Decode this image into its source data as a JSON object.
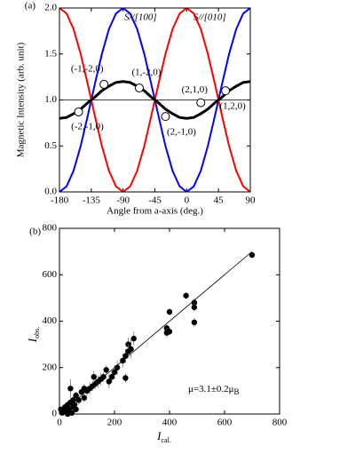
{
  "chart_data": [
    {
      "type": "line",
      "panel_label": "(a)",
      "xlabel": "Angle from a-axis (deg.)",
      "ylabel": "Magnetic Intensity (arb. unit)",
      "xlim": [
        -180,
        90
      ],
      "ylim": [
        0,
        2
      ],
      "xticks": [
        -180,
        -135,
        -90,
        -45,
        0,
        45,
        90
      ],
      "yticks": [
        {
          "value": 0,
          "label": "0.0"
        },
        {
          "value": 0.5,
          "label": "0.5"
        },
        {
          "value": 1,
          "label": "1.0"
        },
        {
          "value": 1.5,
          "label": "1.5"
        },
        {
          "value": 2,
          "label": "2.0"
        }
      ],
      "reference_line": 1,
      "x": [
        -180,
        -170,
        -160,
        -150,
        -140,
        -130,
        -120,
        -110,
        -100,
        -90,
        -80,
        -70,
        -60,
        -50,
        -40,
        -30,
        -20,
        -10,
        0,
        10,
        20,
        30,
        40,
        50,
        60,
        70,
        80,
        90
      ],
      "series": [
        {
          "name": "S//[100]",
          "color": "#0000ff",
          "values": [
            0,
            0.06,
            0.23,
            0.5,
            0.83,
            1.17,
            1.5,
            1.77,
            1.94,
            2,
            1.94,
            1.77,
            1.5,
            1.17,
            0.83,
            0.5,
            0.23,
            0.06,
            0,
            0.06,
            0.23,
            0.5,
            0.83,
            1.17,
            1.5,
            1.77,
            1.94,
            2
          ]
        },
        {
          "name": "S//[010]",
          "color": "#ff0000",
          "values": [
            2,
            1.94,
            1.77,
            1.5,
            1.17,
            0.83,
            0.5,
            0.23,
            0.06,
            0,
            0.06,
            0.23,
            0.5,
            0.83,
            1.17,
            1.5,
            1.77,
            1.94,
            2,
            1.94,
            1.77,
            1.5,
            1.17,
            0.83,
            0.5,
            0.23,
            0.06,
            0
          ]
        },
        {
          "color": "#000000",
          "values": [
            0.8,
            0.81,
            0.85,
            0.9,
            0.97,
            1.03,
            1.1,
            1.15,
            1.19,
            1.2,
            1.19,
            1.15,
            1.1,
            1.03,
            0.97,
            0.9,
            0.85,
            0.81,
            0.8,
            0.81,
            0.85,
            0.9,
            0.97,
            1.03,
            1.1,
            1.15,
            1.19,
            1.2
          ]
        }
      ],
      "points": {
        "x": [
          -153,
          -117,
          -67,
          -30,
          20,
          55
        ],
        "y": [
          0.87,
          1.17,
          1.13,
          0.82,
          0.97,
          1.1
        ],
        "labels": [
          "(-2,-1,0)",
          "(-1,-2,0)",
          "(1,-2,0)",
          "(2,-1,0)",
          "(2,1,0)",
          "(1,2,0)"
        ]
      }
    },
    {
      "type": "scatter",
      "panel_label": "(b)",
      "xlabel": {
        "main": "I",
        "sub": "cal."
      },
      "ylabel": {
        "main": "I",
        "sub": "obs."
      },
      "annotation": {
        "text": "μ=3.1±0.2μ",
        "sub": "B"
      },
      "xlim": [
        0,
        800
      ],
      "ylim": [
        0,
        800
      ],
      "xticks": [
        0,
        200,
        400,
        600,
        800
      ],
      "yticks": [
        0,
        200,
        400,
        600,
        800
      ],
      "fit_line": {
        "x": [
          0,
          700
        ],
        "y": [
          0,
          700
        ]
      },
      "x": [
        700,
        460,
        490,
        490,
        490,
        400,
        390,
        390,
        400,
        270,
        260,
        250,
        240,
        230,
        240,
        250,
        210,
        200,
        190,
        180,
        170,
        160,
        150,
        140,
        130,
        125,
        120,
        110,
        100,
        90,
        90,
        80,
        70,
        60,
        55,
        50,
        45,
        40,
        40,
        35,
        30,
        25,
        20,
        15,
        10,
        5,
        30,
        45,
        60
      ],
      "y": [
        685,
        510,
        480,
        460,
        395,
        440,
        370,
        350,
        355,
        325,
        280,
        300,
        250,
        230,
        155,
        270,
        200,
        180,
        160,
        140,
        190,
        160,
        150,
        140,
        130,
        160,
        120,
        110,
        100,
        110,
        70,
        95,
        60,
        80,
        40,
        60,
        30,
        50,
        110,
        20,
        40,
        10,
        30,
        15,
        5,
        20,
        0,
        5,
        20
      ],
      "err": [
        0,
        15,
        20,
        20,
        20,
        15,
        20,
        20,
        15,
        30,
        40,
        30,
        30,
        30,
        20,
        30,
        30,
        30,
        25,
        30,
        20,
        20,
        25,
        25,
        20,
        25,
        20,
        25,
        20,
        20,
        20,
        20,
        20,
        15,
        20,
        15,
        15,
        20,
        40,
        15,
        15,
        10,
        15,
        10,
        10,
        10,
        10,
        10,
        10
      ]
    }
  ]
}
